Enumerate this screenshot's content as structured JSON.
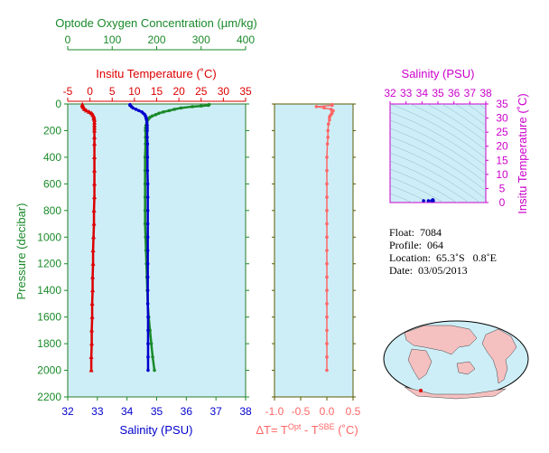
{
  "colors": {
    "oxygen": "#1a8a2a",
    "temperature": "#dd0000",
    "salinity": "#0000cc",
    "delta_t": "#ff6666",
    "ts_axis": "#cc00cc",
    "panel_bg": "#cdeef7",
    "land": "#f5c0c0"
  },
  "info": {
    "float": "Float:  7084",
    "profile": "Profile:  064",
    "location": "Location:  65.3˚S   0.8˚E",
    "date": "Date:  03/05/2013"
  },
  "chart_data": [
    {
      "type": "line",
      "panel": "profile",
      "ylabel": "Pressure (decibar)",
      "ylim": [
        2200,
        0
      ],
      "yticks": [
        0,
        200,
        400,
        600,
        800,
        1000,
        1200,
        1400,
        1600,
        1800,
        2000,
        2200
      ],
      "axes": {
        "oxygen": {
          "label": "Optode Oxygen Concentration (µm/kg)",
          "range": [
            0,
            400
          ],
          "ticks": [
            0,
            100,
            200,
            300,
            400
          ]
        },
        "temperature": {
          "label": "Insitu Temperature (˚C)",
          "range": [
            -5,
            35
          ],
          "ticks": [
            -5,
            0,
            5,
            10,
            15,
            20,
            25,
            30,
            35
          ]
        },
        "salinity": {
          "label": "Salinity (PSU)",
          "range": [
            32,
            38
          ],
          "ticks": [
            32,
            33,
            34,
            35,
            36,
            37,
            38
          ]
        }
      },
      "series": [
        {
          "axis": "oxygen",
          "color": "oxygen",
          "marker": "circle",
          "pressure": [
            5,
            10,
            15,
            20,
            30,
            40,
            50,
            60,
            70,
            80,
            90,
            100,
            110,
            120,
            140,
            160,
            180,
            200,
            250,
            300,
            400,
            500,
            600,
            700,
            800,
            900,
            1000,
            1100,
            1200,
            1300,
            1400,
            1500,
            1600,
            1700,
            1800,
            1900,
            2000
          ],
          "values": [
            318,
            316,
            300,
            280,
            255,
            240,
            228,
            215,
            205,
            198,
            190,
            185,
            182,
            180,
            178,
            176,
            175,
            175,
            175,
            175,
            174,
            174,
            174,
            174,
            174,
            174,
            175,
            176,
            177,
            178,
            179,
            180,
            182,
            185,
            188,
            191,
            195
          ]
        },
        {
          "axis": "temperature",
          "color": "temperature",
          "marker": "triangle",
          "pressure": [
            5,
            10,
            20,
            30,
            40,
            50,
            60,
            70,
            80,
            90,
            100,
            110,
            120,
            140,
            160,
            180,
            200,
            250,
            300,
            400,
            500,
            600,
            700,
            800,
            900,
            1000,
            1100,
            1200,
            1300,
            1400,
            1500,
            1600,
            1700,
            1800,
            1900,
            2000
          ],
          "values": [
            -1.7,
            -1.7,
            -1.6,
            -1.4,
            -1.2,
            -0.8,
            -0.2,
            0.3,
            0.6,
            0.8,
            0.9,
            0.9,
            1.0,
            1.0,
            1.0,
            1.0,
            1.0,
            1.0,
            1.0,
            1.0,
            1.0,
            1.0,
            1.0,
            0.9,
            0.9,
            0.8,
            0.7,
            0.7,
            0.6,
            0.6,
            0.5,
            0.5,
            0.4,
            0.4,
            0.3,
            0.3
          ]
        },
        {
          "axis": "salinity",
          "color": "salinity",
          "marker": "circle",
          "pressure": [
            5,
            10,
            20,
            30,
            40,
            50,
            60,
            70,
            80,
            90,
            100,
            110,
            120,
            140,
            160,
            180,
            200,
            250,
            300,
            400,
            500,
            600,
            700,
            800,
            900,
            1000,
            1100,
            1200,
            1300,
            1400,
            1500,
            1600,
            1700,
            1800,
            1900,
            2000
          ],
          "values": [
            34.1,
            34.1,
            34.15,
            34.2,
            34.3,
            34.4,
            34.5,
            34.55,
            34.6,
            34.62,
            34.64,
            34.65,
            34.66,
            34.67,
            34.68,
            34.68,
            34.68,
            34.68,
            34.69,
            34.69,
            34.69,
            34.7,
            34.7,
            34.7,
            34.7,
            34.7,
            34.7,
            34.7,
            34.7,
            34.7,
            34.7,
            34.71,
            34.71,
            34.71,
            34.71,
            34.71
          ]
        }
      ]
    },
    {
      "type": "line",
      "panel": "delta_t",
      "xlabel": "ΔT= T^Opt - T^SBE (˚C)",
      "xlabel_parts": {
        "prefix": "ΔT= T",
        "sup1": "Opt",
        "mid": " - T",
        "sup2": "SBE",
        "suffix": " (˚C)"
      },
      "xlim": [
        -1.0,
        0.5
      ],
      "xticks": [
        -1.0,
        -0.5,
        0.0,
        0.5
      ],
      "xtick_labels": [
        "-1.0",
        "-0.5",
        "0.0",
        "0.5"
      ],
      "ylim": [
        2200,
        0
      ],
      "series": [
        {
          "color": "delta_t",
          "marker": "circle",
          "pressure": [
            5,
            10,
            20,
            30,
            40,
            50,
            60,
            70,
            80,
            90,
            100,
            120,
            150,
            200,
            250,
            300,
            400,
            500,
            600,
            700,
            800,
            900,
            1000,
            1100,
            1200,
            1300,
            1400,
            1500,
            1600,
            1700,
            1800,
            1900,
            2000
          ],
          "values": [
            0.1,
            0.1,
            -0.2,
            -0.05,
            0.08,
            0.12,
            0.1,
            0.1,
            0.08,
            0.06,
            0.05,
            0.05,
            0.03,
            0.02,
            0.02,
            0.01,
            0.0,
            0.0,
            0.0,
            0.0,
            0.0,
            0.0,
            0.0,
            0.0,
            0.0,
            0.0,
            0.0,
            0.0,
            0.0,
            0.0,
            0.0,
            0.0,
            0.0
          ]
        }
      ]
    },
    {
      "type": "scatter",
      "panel": "ts_diagram",
      "xlabel": "Salinity (PSU)",
      "ylabel": "Insitu Temperature (˚C)",
      "xlim": [
        32,
        38
      ],
      "ylim": [
        0,
        35
      ],
      "xticks": [
        32,
        33,
        34,
        35,
        36,
        37,
        38
      ],
      "yticks": [
        0,
        5,
        10,
        15,
        20,
        25,
        30,
        35
      ],
      "series": [
        {
          "color": "salinity",
          "points": [
            [
              34.1,
              -1.7
            ],
            [
              34.4,
              -0.8
            ],
            [
              34.6,
              0.6
            ],
            [
              34.68,
              1.0
            ],
            [
              34.7,
              0.8
            ],
            [
              34.71,
              0.3
            ]
          ]
        }
      ]
    }
  ]
}
